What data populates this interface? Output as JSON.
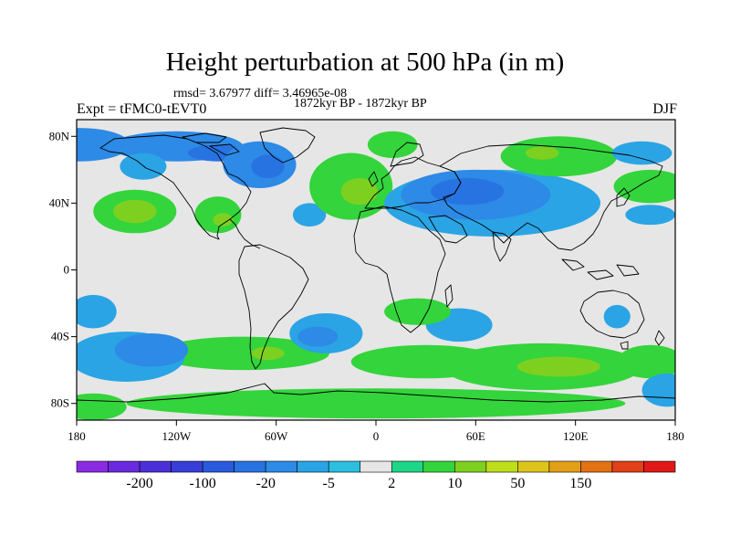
{
  "title": "Height perturbation at 500 hPa (in m)",
  "stats_line": "rmsd= 3.67977 diff= 3.46965e-08",
  "period_line": "1872kyr BP - 1872kyr BP",
  "experiment": "Expt = tFMC0-tEVT0",
  "season": "DJF",
  "map": {
    "projection": "cylindrical equidistant",
    "lon_range": [
      -180,
      180
    ],
    "lat_range": [
      -90,
      90
    ],
    "lat_ticks": [
      {
        "value": 80,
        "label": "80N"
      },
      {
        "value": 40,
        "label": "40N"
      },
      {
        "value": 0,
        "label": "0"
      },
      {
        "value": -40,
        "label": "40S"
      },
      {
        "value": -80,
        "label": "80S"
      }
    ],
    "lon_ticks": [
      {
        "value": -180,
        "label": "180"
      },
      {
        "value": -120,
        "label": "120W"
      },
      {
        "value": -60,
        "label": "60W"
      },
      {
        "value": 0,
        "label": "0"
      },
      {
        "value": 60,
        "label": "60E"
      },
      {
        "value": 120,
        "label": "120E"
      },
      {
        "value": 180,
        "label": "180"
      }
    ],
    "background_color": "#e6e6e6",
    "anomalies": [
      {
        "lon": -178,
        "lat": 75,
        "rx": 30,
        "ry": 10,
        "level": "-10"
      },
      {
        "lon": -120,
        "lat": 74,
        "rx": 40,
        "ry": 9,
        "level": "-10"
      },
      {
        "lon": -95,
        "lat": 70,
        "rx": 18,
        "ry": 5,
        "level": "-20"
      },
      {
        "lon": -70,
        "lat": 63,
        "rx": 22,
        "ry": 14,
        "level": "-10"
      },
      {
        "lon": -65,
        "lat": 62,
        "rx": 10,
        "ry": 7,
        "level": "-20"
      },
      {
        "lon": -140,
        "lat": 62,
        "rx": 14,
        "ry": 8,
        "level": "-5"
      },
      {
        "lon": -145,
        "lat": 35,
        "rx": 25,
        "ry": 13,
        "level": "5"
      },
      {
        "lon": -145,
        "lat": 35,
        "rx": 13,
        "ry": 7,
        "level": "10"
      },
      {
        "lon": -95,
        "lat": 33,
        "rx": 14,
        "ry": 11,
        "level": "5"
      },
      {
        "lon": -92,
        "lat": 30,
        "rx": 6,
        "ry": 4,
        "level": "10"
      },
      {
        "lon": -40,
        "lat": 33,
        "rx": 10,
        "ry": 7,
        "level": "-5"
      },
      {
        "lon": -15,
        "lat": 50,
        "rx": 25,
        "ry": 20,
        "level": "5"
      },
      {
        "lon": -10,
        "lat": 47,
        "rx": 11,
        "ry": 8,
        "level": "10"
      },
      {
        "lon": 10,
        "lat": 75,
        "rx": 15,
        "ry": 8,
        "level": "5"
      },
      {
        "lon": 70,
        "lat": 40,
        "rx": 65,
        "ry": 20,
        "level": "-5"
      },
      {
        "lon": 60,
        "lat": 45,
        "rx": 45,
        "ry": 15,
        "level": "-10"
      },
      {
        "lon": 55,
        "lat": 47,
        "rx": 22,
        "ry": 8,
        "level": "-20"
      },
      {
        "lon": 110,
        "lat": 68,
        "rx": 35,
        "ry": 12,
        "level": "5"
      },
      {
        "lon": 100,
        "lat": 70,
        "rx": 10,
        "ry": 4,
        "level": "10"
      },
      {
        "lon": 165,
        "lat": 50,
        "rx": 22,
        "ry": 10,
        "level": "5"
      },
      {
        "lon": 160,
        "lat": 70,
        "rx": 18,
        "ry": 7,
        "level": "-5"
      },
      {
        "lon": 165,
        "lat": 33,
        "rx": 15,
        "ry": 6,
        "level": "-5"
      },
      {
        "lon": -80,
        "lat": -50,
        "rx": 52,
        "ry": 10,
        "level": "5"
      },
      {
        "lon": -65,
        "lat": -50,
        "rx": 10,
        "ry": 4,
        "level": "10"
      },
      {
        "lon": -150,
        "lat": -52,
        "rx": 35,
        "ry": 15,
        "level": "-5"
      },
      {
        "lon": -135,
        "lat": -48,
        "rx": 22,
        "ry": 10,
        "level": "-10"
      },
      {
        "lon": -170,
        "lat": -25,
        "rx": 14,
        "ry": 10,
        "level": "-5"
      },
      {
        "lon": -30,
        "lat": -38,
        "rx": 22,
        "ry": 12,
        "level": "-5"
      },
      {
        "lon": -35,
        "lat": -40,
        "rx": 12,
        "ry": 6,
        "level": "-10"
      },
      {
        "lon": 50,
        "lat": -33,
        "rx": 20,
        "ry": 10,
        "level": "-5"
      },
      {
        "lon": 25,
        "lat": -25,
        "rx": 20,
        "ry": 8,
        "level": "5"
      },
      {
        "lon": 30,
        "lat": -55,
        "rx": 45,
        "ry": 10,
        "level": "5"
      },
      {
        "lon": 100,
        "lat": -58,
        "rx": 60,
        "ry": 14,
        "level": "5"
      },
      {
        "lon": 110,
        "lat": -58,
        "rx": 25,
        "ry": 6,
        "level": "10"
      },
      {
        "lon": 165,
        "lat": -55,
        "rx": 20,
        "ry": 10,
        "level": "5"
      },
      {
        "lon": 145,
        "lat": -28,
        "rx": 8,
        "ry": 7,
        "level": "-5"
      },
      {
        "lon": 175,
        "lat": -72,
        "rx": 15,
        "ry": 10,
        "level": "-5"
      },
      {
        "lon": 0,
        "lat": -80,
        "rx": 150,
        "ry": 9,
        "level": "5"
      },
      {
        "lon": -170,
        "lat": -82,
        "rx": 20,
        "ry": 8,
        "level": "5"
      }
    ]
  },
  "colorbar": {
    "levels": [
      "-300",
      "-200",
      "-150",
      "-100",
      "-50",
      "-20",
      "-10",
      "-5",
      "-2",
      "2",
      "5",
      "10",
      "20",
      "50",
      "100",
      "150",
      "200",
      "300"
    ],
    "colors": [
      "#8a2be2",
      "#6a2adf",
      "#4b30da",
      "#3a3ed8",
      "#2a5ade",
      "#2873e2",
      "#2d8ae6",
      "#2aa4e4",
      "#2cc0e0",
      "#e6e6e6",
      "#1ed688",
      "#34d43c",
      "#7ed020",
      "#bede1c",
      "#ddc41a",
      "#e2a018",
      "#e27214",
      "#e24018",
      "#e01818"
    ],
    "labels": [
      "-200",
      "-100",
      "-20",
      "-5",
      "2",
      "10",
      "50",
      "150"
    ]
  }
}
